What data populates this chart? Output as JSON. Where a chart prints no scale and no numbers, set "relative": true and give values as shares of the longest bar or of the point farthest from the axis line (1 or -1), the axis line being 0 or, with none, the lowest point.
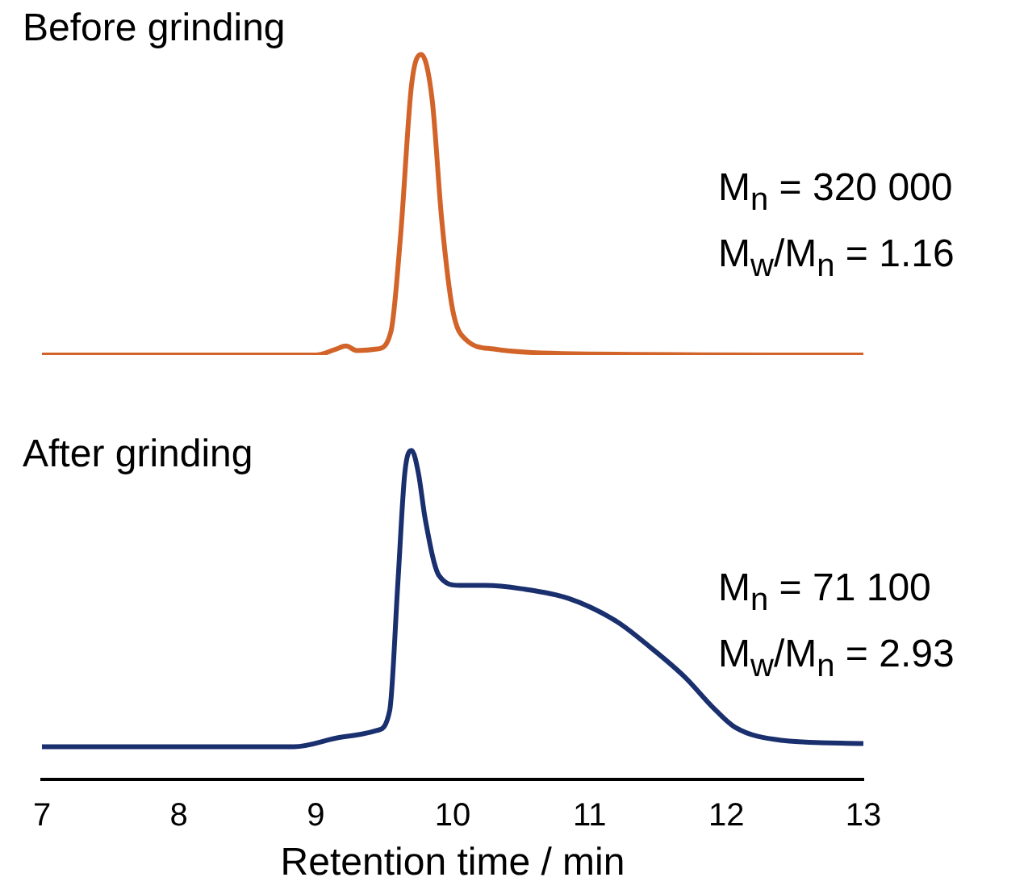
{
  "chart_data": [
    {
      "type": "line",
      "title": "Before grinding",
      "relative": true,
      "xlim": [
        7,
        13
      ],
      "tick_labels": false,
      "grid": false,
      "legend": false,
      "marker": "none",
      "line_style": "solid",
      "annotations": [
        "M$_{n}$ = 320 000",
        "M$_{w}$/M$_{n}$ = 1.16"
      ],
      "series": [
        {
          "color": "#d2642a",
          "x": [
            7,
            9.0,
            9.15,
            9.22,
            9.3,
            9.45,
            9.55,
            9.62,
            9.7,
            9.77,
            9.85,
            9.92,
            10.0,
            10.1,
            10.3,
            10.8,
            13
          ],
          "values": [
            0,
            0,
            0.02,
            0.03,
            0.015,
            0.02,
            0.08,
            0.4,
            0.9,
            1,
            0.85,
            0.45,
            0.15,
            0.05,
            0.02,
            0.005,
            0
          ]
        }
      ]
    },
    {
      "type": "line",
      "title": "After grinding",
      "relative": true,
      "xlim": [
        7,
        13
      ],
      "xticks": [
        7,
        8,
        9,
        10,
        11,
        12,
        13
      ],
      "xlabel": "Retention time / min",
      "tick_labels": "x",
      "grid": false,
      "legend": false,
      "marker": "none",
      "line_style": "solid",
      "annotations": [
        "M$_{n}$ = 71 100",
        "M$_{w}$/M$_{n}$ = 2.93"
      ],
      "series": [
        {
          "color": "#1a2f6e",
          "x": [
            7,
            8.84,
            9.2,
            9.45,
            9.54,
            9.6,
            9.65,
            9.7,
            9.75,
            9.8,
            9.9,
            10.05,
            10.24,
            10.5,
            10.85,
            11.2,
            11.45,
            11.7,
            11.9,
            12.06,
            12.4,
            13
          ],
          "values": [
            0.1,
            0.1,
            0.13,
            0.15,
            0.21,
            0.6,
            0.93,
            1,
            0.93,
            0.79,
            0.62,
            0.59,
            0.59,
            0.58,
            0.55,
            0.48,
            0.4,
            0.31,
            0.22,
            0.16,
            0.12,
            0.11
          ]
        }
      ]
    }
  ]
}
